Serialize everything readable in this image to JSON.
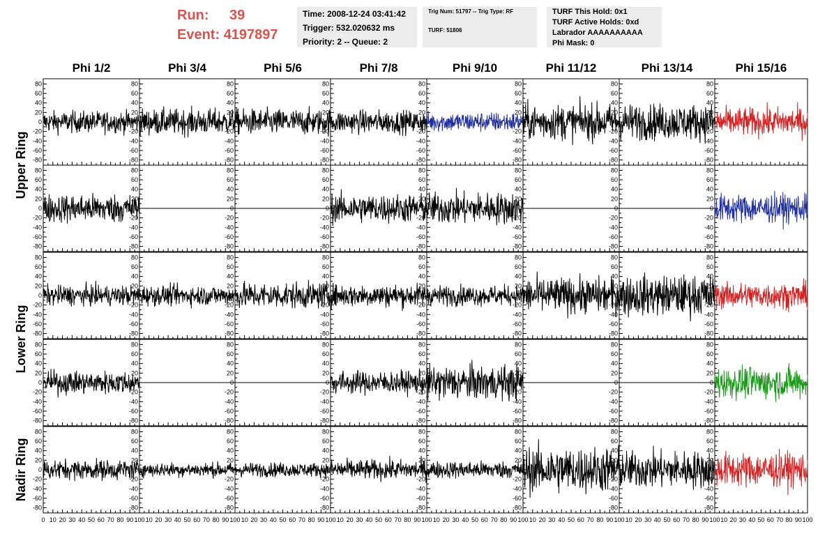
{
  "run_info": {
    "run_label": "Run:",
    "run_value": "39",
    "event_label": "Event:",
    "event_value": "4197897"
  },
  "time_box": {
    "time": "Time: 2008-12-24 03:41:42",
    "trigger": "Trigger: 532.020632 ms",
    "priority": "Priority: 2 -- Queue: 2"
  },
  "trig_box": {
    "trig": "Trig Num: 51797 -- Trig Type: RF",
    "turf": "TURF: 51806"
  },
  "turf_box": {
    "this_hold": "TURF This Hold: 0x1",
    "active_holds": "TURF Active Holds: 0xd",
    "labrador": "Labrador AAAAAAAAAA",
    "phi_mask": "Phi Mask: 0"
  },
  "colors": {
    "run_text": "#d9534f",
    "trace_black": "#000000",
    "trace_blue": "#1f2fa0",
    "trace_red": "#d42020",
    "trace_green": "#1a9a1a",
    "info_box": "#ececec"
  },
  "chart_data": {
    "type": "line",
    "columns": [
      "Phi 1/2",
      "Phi 3/4",
      "Phi 5/6",
      "Phi 7/8",
      "Phi 9/10",
      "Phi 11/12",
      "Phi 13/14",
      "Phi 15/16"
    ],
    "ring_labels": [
      "Upper Ring",
      "Lower Ring",
      "Nadir Ring"
    ],
    "ring_label_rows": [
      [
        0,
        1
      ],
      [
        2,
        3
      ],
      [
        4,
        4
      ]
    ],
    "ylim": [
      -85,
      85
    ],
    "y_ticks": [
      -80,
      -60,
      -40,
      -20,
      0,
      20,
      40,
      60,
      80
    ],
    "xlim": [
      0,
      100
    ],
    "x_ticks": [
      0,
      10,
      20,
      30,
      40,
      50,
      60,
      70,
      80,
      90,
      100
    ],
    "grid": false,
    "rows": [
      {
        "amplitudes": [
          15,
          18,
          18,
          16,
          14,
          25,
          25,
          20
        ],
        "colors": [
          "black",
          "black",
          "black",
          "black",
          "blue",
          "black",
          "black",
          "red"
        ]
      },
      {
        "amplitudes": [
          20,
          0,
          0,
          20,
          22,
          0,
          0,
          20
        ],
        "colors": [
          "black",
          "black",
          "black",
          "black",
          "black",
          "black",
          "black",
          "blue"
        ]
      },
      {
        "amplitudes": [
          14,
          14,
          18,
          16,
          14,
          25,
          28,
          18
        ],
        "colors": [
          "black",
          "black",
          "black",
          "black",
          "black",
          "black",
          "black",
          "red"
        ]
      },
      {
        "amplitudes": [
          16,
          0,
          0,
          16,
          24,
          0,
          0,
          22
        ],
        "colors": [
          "black",
          "black",
          "black",
          "black",
          "black",
          "black",
          "black",
          "green"
        ]
      },
      {
        "amplitudes": [
          14,
          10,
          10,
          14,
          12,
          32,
          26,
          24
        ],
        "colors": [
          "black",
          "black",
          "black",
          "black",
          "black",
          "black",
          "black",
          "red"
        ]
      }
    ]
  }
}
